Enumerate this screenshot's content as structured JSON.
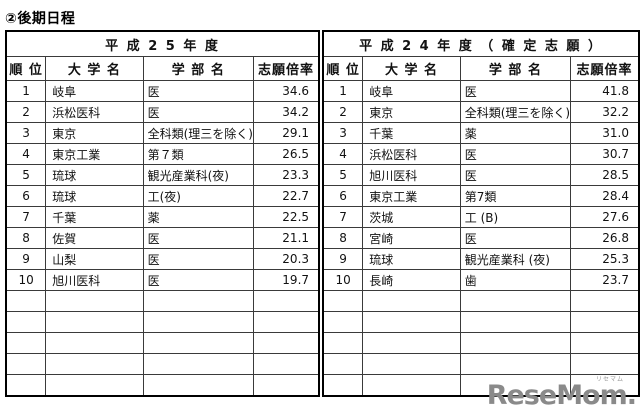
{
  "page": {
    "title": "②後期日程"
  },
  "watermark": {
    "text": "ReseMom.",
    "small_text": "リセマム",
    "color": "#8a8a8a"
  },
  "tables": [
    {
      "id": "h25",
      "year_header": "平 成 2 5 年 度",
      "columns": [
        "順 位",
        "大 学 名",
        "学 部 名",
        "志願倍率"
      ],
      "rows": [
        [
          "1",
          "岐阜",
          "医",
          "34.6"
        ],
        [
          "2",
          "浜松医科",
          "医",
          "34.2"
        ],
        [
          "3",
          "東京",
          "全科類(理三を除く)",
          "29.1"
        ],
        [
          "4",
          "東京工業",
          "第７類",
          "26.5"
        ],
        [
          "5",
          "琉球",
          "観光産業科(夜)",
          "23.3"
        ],
        [
          "6",
          "琉球",
          "工(夜)",
          "22.7"
        ],
        [
          "7",
          "千葉",
          "薬",
          "22.5"
        ],
        [
          "8",
          "佐賀",
          "医",
          "21.1"
        ],
        [
          "9",
          "山梨",
          "医",
          "20.3"
        ],
        [
          "10",
          "旭川医科",
          "医",
          "19.7"
        ]
      ],
      "empty_row_count": 5
    },
    {
      "id": "h24",
      "year_header": "平 成 2 4 年 度 （ 確 定 志 願 ）",
      "columns": [
        "順 位",
        "大 学 名",
        "学 部 名",
        "志願倍率"
      ],
      "rows": [
        [
          "1",
          "岐阜",
          "医",
          "41.8"
        ],
        [
          "2",
          "東京",
          "全科類(理三を除く)",
          "32.2"
        ],
        [
          "3",
          "千葉",
          "薬",
          "31.0"
        ],
        [
          "4",
          "浜松医科",
          "医",
          "30.7"
        ],
        [
          "5",
          "旭川医科",
          "医",
          "28.5"
        ],
        [
          "6",
          "東京工業",
          "第7類",
          "28.4"
        ],
        [
          "7",
          "茨城",
          "工 (B)",
          "27.6"
        ],
        [
          "8",
          "宮崎",
          "医",
          "26.8"
        ],
        [
          "9",
          "琉球",
          "観光産業科 (夜)",
          "25.3"
        ],
        [
          "10",
          "長崎",
          "歯",
          "23.7"
        ]
      ],
      "empty_row_count": 5
    }
  ]
}
